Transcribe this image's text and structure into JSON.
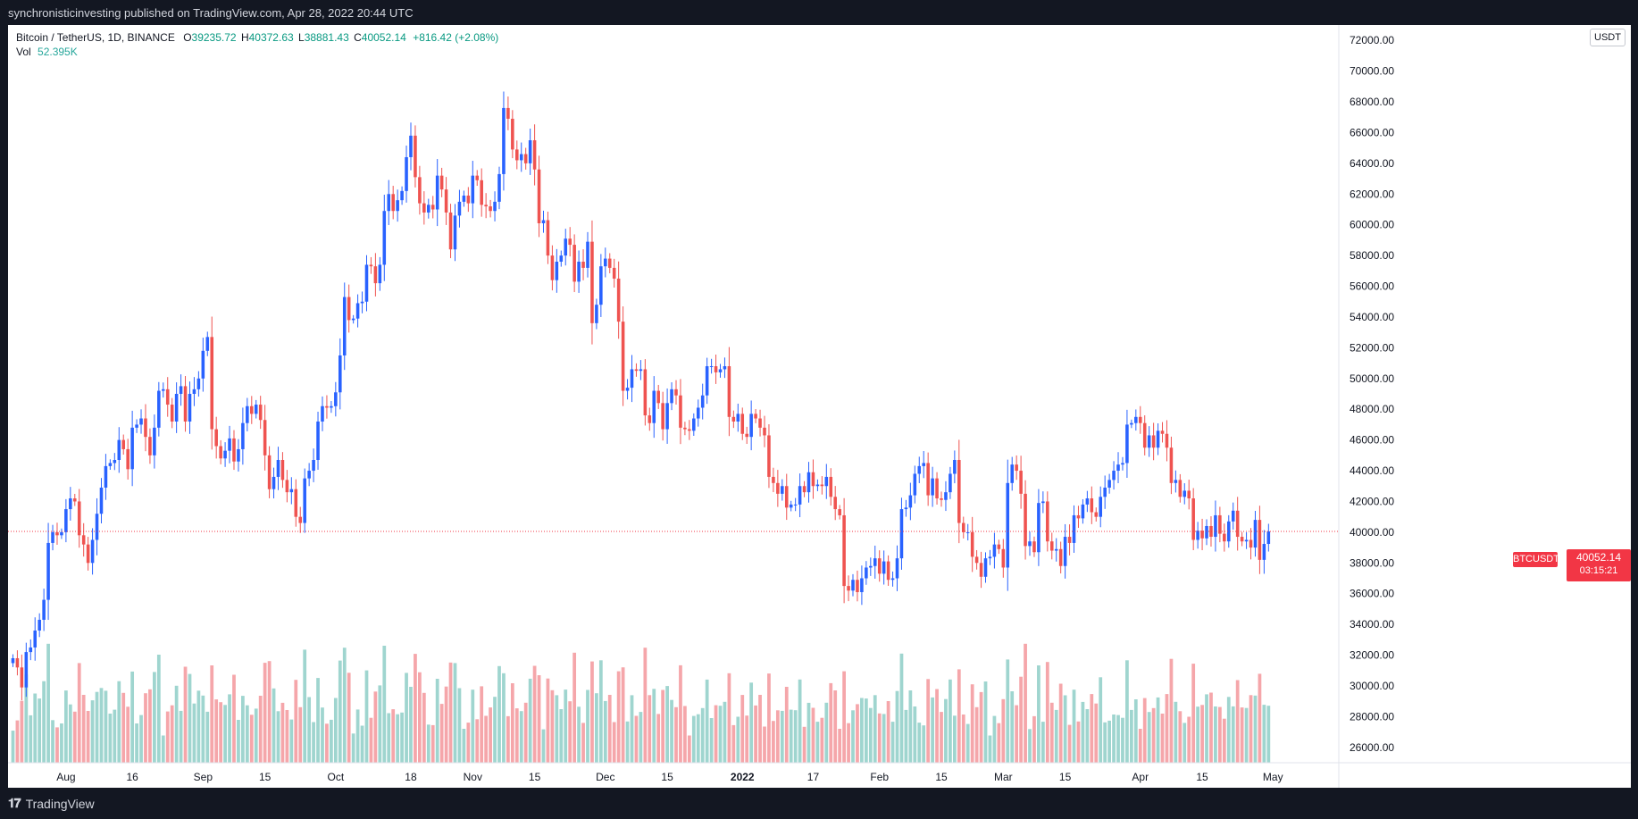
{
  "header": {
    "publish_note": "synchronisticinvesting published on TradingView.com, Apr 28, 2022 20:44 UTC"
  },
  "legend": {
    "symbol": "Bitcoin / TetherUS, 1D, BINANCE",
    "o_label": "O",
    "o_value": "39235.72",
    "h_label": "H",
    "h_value": "40372.63",
    "l_label": "L",
    "l_value": "38881.43",
    "c_label": "C",
    "c_value": "40052.14",
    "change": "+816.42 (+2.08%)",
    "vol_label": "Vol",
    "vol_value": "52.395K"
  },
  "currency": "USDT",
  "price_tag": {
    "symbol": "BTCUSDT",
    "price": "40052.14",
    "countdown": "03:15:21"
  },
  "footer": {
    "brand": "TradingView"
  },
  "colors": {
    "up": "#2962ff",
    "down": "#ef5350",
    "vol_up": "#9fd5cf",
    "vol_down": "#f5a6aa",
    "last_line": "#f23645"
  },
  "chart_data": {
    "type": "candlestick",
    "symbol": "BTCUSDT",
    "interval": "1D",
    "ylim": [
      25000,
      73000
    ],
    "yticks": [
      26000,
      28000,
      30000,
      32000,
      34000,
      36000,
      38000,
      40000,
      42000,
      44000,
      46000,
      48000,
      50000,
      52000,
      54000,
      56000,
      58000,
      60000,
      62000,
      64000,
      66000,
      68000,
      70000,
      72000
    ],
    "ytick_labels": [
      "26000.00",
      "28000.00",
      "30000.00",
      "32000.00",
      "34000.00",
      "36000.00",
      "38000.00",
      "40000.00",
      "42000.00",
      "44000.00",
      "46000.00",
      "48000.00",
      "50000.00",
      "52000.00",
      "54000.00",
      "56000.00",
      "58000.00",
      "60000.00",
      "62000.00",
      "64000.00",
      "66000.00",
      "68000.00",
      "70000.00",
      "72000.00"
    ],
    "xticks": [
      {
        "label": "Aug",
        "day": 12,
        "bold": false
      },
      {
        "label": "16",
        "day": 27,
        "bold": false
      },
      {
        "label": "Sep",
        "day": 43,
        "bold": false
      },
      {
        "label": "15",
        "day": 57,
        "bold": false
      },
      {
        "label": "Oct",
        "day": 73,
        "bold": false
      },
      {
        "label": "18",
        "day": 90,
        "bold": false
      },
      {
        "label": "Nov",
        "day": 104,
        "bold": false
      },
      {
        "label": "15",
        "day": 118,
        "bold": false
      },
      {
        "label": "Dec",
        "day": 134,
        "bold": false
      },
      {
        "label": "15",
        "day": 148,
        "bold": false
      },
      {
        "label": "2022",
        "day": 165,
        "bold": true
      },
      {
        "label": "17",
        "day": 181,
        "bold": false
      },
      {
        "label": "Feb",
        "day": 196,
        "bold": false
      },
      {
        "label": "15",
        "day": 210,
        "bold": false
      },
      {
        "label": "Mar",
        "day": 224,
        "bold": false
      },
      {
        "label": "15",
        "day": 238,
        "bold": false
      },
      {
        "label": "Apr",
        "day": 255,
        "bold": false
      },
      {
        "label": "15",
        "day": 269,
        "bold": false
      },
      {
        "label": "May",
        "day": 285,
        "bold": false
      }
    ],
    "last_price": 40052.14,
    "closes": [
      31800,
      31200,
      29900,
      32200,
      32500,
      33600,
      34300,
      35600,
      39300,
      40000,
      39800,
      40000,
      41500,
      42200,
      42000,
      39800,
      39200,
      38000,
      39500,
      41200,
      42900,
      44300,
      44500,
      44700,
      46000,
      45400,
      44100,
      46800,
      47000,
      47400,
      46200,
      45000,
      46800,
      49200,
      49300,
      48300,
      47200,
      49000,
      49500,
      47200,
      49000,
      49300,
      50000,
      51800,
      52700,
      46700,
      45600,
      44800,
      45300,
      46100,
      44600,
      45400,
      47100,
      48200,
      47700,
      48300,
      47300,
      45000,
      42800,
      43600,
      44700,
      43400,
      42600,
      42800,
      41000,
      40600,
      43500,
      44000,
      44700,
      47200,
      48200,
      48100,
      48200,
      49100,
      51500,
      55300,
      53800,
      53900,
      54900,
      55000,
      57400,
      57300,
      56200,
      57400,
      60900,
      62000,
      60900,
      61600,
      62200,
      64400,
      65800,
      63100,
      61400,
      60800,
      61300,
      61000,
      63200,
      62300,
      60800,
      58400,
      60600,
      61500,
      61900,
      61400,
      63200,
      62900,
      61300,
      61200,
      60900,
      61500,
      63300,
      67600,
      66900,
      64900,
      64200,
      64600,
      64000,
      65500,
      63600,
      60100,
      60300,
      58000,
      56400,
      57600,
      58000,
      59100,
      58700,
      56300,
      57600,
      57200,
      58900,
      53600,
      54800,
      57300,
      57800,
      57200,
      56500,
      53700,
      49200,
      49400,
      50600,
      50500,
      50600,
      47600,
      47100,
      49200,
      48400,
      46700,
      48400,
      49300,
      48900,
      46800,
      46700,
      46600,
      47400,
      48100,
      48900,
      50800,
      50800,
      50400,
      50600,
      50800,
      47500,
      47200,
      47700,
      46400,
      46200,
      47700,
      47400,
      46800,
      46300,
      43600,
      43200,
      42500,
      43000,
      41600,
      41800,
      41800,
      43000,
      42600,
      43900,
      43000,
      43100,
      43000,
      43600,
      42300,
      41500,
      41100,
      36500,
      36200,
      36900,
      36100,
      37000,
      37700,
      37800,
      38300,
      37300,
      38100,
      36900,
      37000,
      38300,
      41500,
      41600,
      42400,
      43800,
      44300,
      44500,
      42400,
      43500,
      42200,
      42100,
      42600,
      43800,
      44700,
      40600,
      40000,
      40000,
      38400,
      38000,
      37100,
      38300,
      38400,
      39200,
      38900,
      37700,
      43200,
      44400,
      44000,
      42500,
      39100,
      39400,
      38700,
      41900,
      42000,
      39400,
      38800,
      38900,
      37800,
      39700,
      39300,
      41100,
      40900,
      41800,
      42200,
      41300,
      41000,
      42300,
      42900,
      43400,
      44000,
      44400,
      44500,
      47000,
      47100,
      47500,
      47100,
      45500,
      46300,
      45500,
      46600,
      46400,
      45500,
      43200,
      43400,
      42300,
      42700,
      42200,
      39500,
      40100,
      39600,
      40400,
      39700,
      41100,
      39900,
      39400,
      40700,
      41400,
      39700,
      39400,
      39500,
      39000,
      40800,
      38200,
      39235.72,
      40052.14
    ]
  }
}
